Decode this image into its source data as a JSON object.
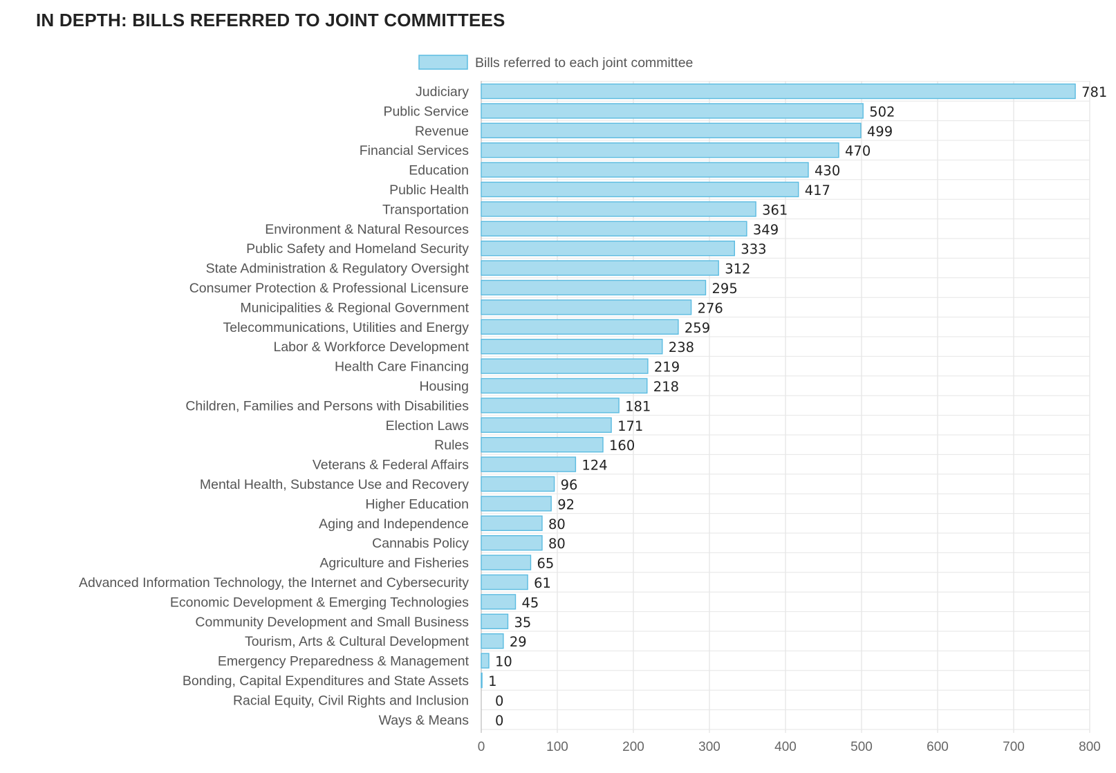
{
  "header": {
    "title": "IN DEPTH: BILLS REFERRED TO JOINT COMMITTEES"
  },
  "colors": {
    "bar_fill": "#a9dcef",
    "bar_stroke": "#5bbbe0",
    "grid": "#dddddd",
    "axis": "#bbbbbb"
  },
  "chart_data": {
    "type": "bar",
    "orientation": "horizontal",
    "title": "IN DEPTH: BILLS REFERRED TO JOINT COMMITTEES",
    "legend": {
      "label": "Bills referred to each joint committee",
      "position": "top"
    },
    "xlabel": "",
    "ylabel": "",
    "xlim": [
      0,
      800
    ],
    "x_ticks": [
      0,
      100,
      200,
      300,
      400,
      500,
      600,
      700,
      800
    ],
    "grid": true,
    "categories": [
      "Judiciary",
      "Public Service",
      "Revenue",
      "Financial Services",
      "Education",
      "Public Health",
      "Transportation",
      "Environment & Natural Resources",
      "Public Safety and Homeland Security",
      "State Administration & Regulatory Oversight",
      "Consumer Protection & Professional Licensure",
      "Municipalities & Regional Government",
      "Telecommunications, Utilities and Energy",
      "Labor & Workforce Development",
      "Health Care Financing",
      "Housing",
      "Children, Families and Persons with Disabilities",
      "Election Laws",
      "Rules",
      "Veterans & Federal Affairs",
      "Mental Health, Substance Use and Recovery",
      "Higher Education",
      "Aging and Independence",
      "Cannabis Policy",
      "Agriculture and Fisheries",
      "Advanced Information Technology, the Internet and Cybersecurity",
      "Economic Development & Emerging Technologies",
      "Community Development and Small Business",
      "Tourism, Arts & Cultural Development",
      "Emergency Preparedness & Management",
      "Bonding, Capital Expenditures and State Assets",
      "Racial Equity, Civil Rights and Inclusion",
      "Ways & Means"
    ],
    "values": [
      781,
      502,
      499,
      470,
      430,
      417,
      361,
      349,
      333,
      312,
      295,
      276,
      259,
      238,
      219,
      218,
      181,
      171,
      160,
      124,
      96,
      92,
      80,
      80,
      65,
      61,
      45,
      35,
      29,
      10,
      1,
      0,
      0
    ]
  }
}
